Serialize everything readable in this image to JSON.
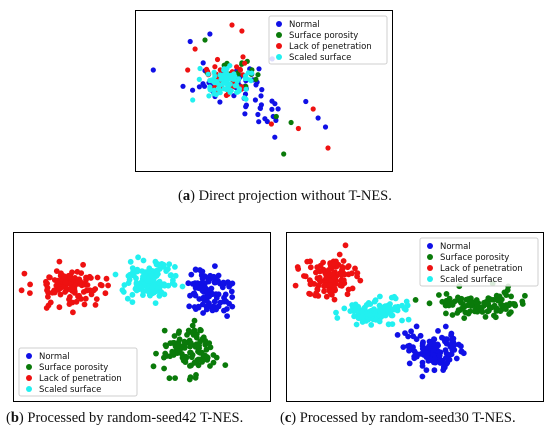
{
  "captions": {
    "a": {
      "tag": "a",
      "text": " Direct projection without T-NES."
    },
    "b": {
      "tag": "b",
      "text": " Processed by random-seed42 T-NES."
    },
    "c": {
      "tag": "c",
      "text": " Processed by random-seed30 T-NES."
    }
  },
  "colors": {
    "Normal": "#1010e6",
    "Surface porosity": "#0a7a0a",
    "Lack of penetration": "#ee1111",
    "Scaled surface": "#22f0f0"
  },
  "chart_data": [
    {
      "type": "scatter",
      "panel": "a",
      "title": "",
      "xlabel": "",
      "ylabel": "",
      "xlim": [
        0,
        100
      ],
      "ylim": [
        0,
        100
      ],
      "grid": false,
      "legend_position": "top-right",
      "series": [
        {
          "name": "Normal",
          "clusters": [
            {
              "cx": 36,
              "cy": 58,
              "sx": 10,
              "sy": 9,
              "n": 45,
              "seed": 11
            },
            {
              "cx": 50,
              "cy": 40,
              "sx": 9,
              "sy": 9,
              "n": 25,
              "seed": 12
            }
          ],
          "points": [
            [
              5,
              64
            ],
            [
              20,
              83
            ],
            [
              67,
              43
            ],
            [
              72,
              32
            ],
            [
              75,
              26
            ],
            [
              28,
              88
            ]
          ]
        },
        {
          "name": "Surface porosity",
          "clusters": [
            {
              "cx": 38,
              "cy": 62,
              "sx": 9,
              "sy": 7,
              "n": 18,
              "seed": 21
            }
          ],
          "points": [
            [
              58,
              8
            ],
            [
              61,
              29
            ],
            [
              55,
              33
            ],
            [
              26,
              84
            ]
          ]
        },
        {
          "name": "Lack of penetration",
          "clusters": [
            {
              "cx": 33,
              "cy": 58,
              "sx": 7,
              "sy": 8,
              "n": 45,
              "seed": 31
            }
          ],
          "points": [
            [
              37,
              94
            ],
            [
              41,
              90
            ],
            [
              64,
              25
            ],
            [
              76,
              12
            ],
            [
              70,
              38
            ],
            [
              53,
              28
            ],
            [
              22,
              78
            ],
            [
              19,
              64
            ]
          ]
        },
        {
          "name": "Scaled surface",
          "clusters": [
            {
              "cx": 36,
              "cy": 56,
              "sx": 7,
              "sy": 6,
              "n": 80,
              "seed": 41
            }
          ],
          "points": [
            [
              21,
              44
            ],
            [
              24,
              65
            ]
          ]
        }
      ],
      "legend": [
        "Normal",
        "Surface porosity",
        "Lack of penetration",
        "Scaled surface"
      ]
    },
    {
      "type": "scatter",
      "panel": "b",
      "title": "",
      "xlabel": "",
      "ylabel": "",
      "xlim": [
        0,
        100
      ],
      "ylim": [
        0,
        100
      ],
      "grid": false,
      "legend_position": "bottom-left",
      "series": [
        {
          "name": "Normal",
          "clusters": [
            {
              "cx": 77,
              "cy": 66,
              "sx": 6.5,
              "sy": 10,
              "n": 110,
              "seed": 51
            }
          ],
          "points": []
        },
        {
          "name": "Surface porosity",
          "clusters": [
            {
              "cx": 69,
              "cy": 28,
              "sx": 7,
              "sy": 11,
              "n": 110,
              "seed": 52
            }
          ],
          "points": []
        },
        {
          "name": "Lack of penetration",
          "clusters": [
            {
              "cx": 21,
              "cy": 70,
              "sx": 10,
              "sy": 8,
              "n": 120,
              "seed": 53
            }
          ],
          "points": []
        },
        {
          "name": "Scaled surface",
          "clusters": [
            {
              "cx": 53,
              "cy": 74,
              "sx": 6.5,
              "sy": 9,
              "n": 130,
              "seed": 54
            }
          ],
          "points": []
        }
      ],
      "legend": [
        "Normal",
        "Surface porosity",
        "Lack of penetration",
        "Scaled surface"
      ]
    },
    {
      "type": "scatter",
      "panel": "c",
      "title": "",
      "xlabel": "",
      "ylabel": "",
      "xlim": [
        0,
        100
      ],
      "ylim": [
        0,
        100
      ],
      "grid": false,
      "legend_position": "top-right",
      "series": [
        {
          "name": "Normal",
          "clusters": [
            {
              "cx": 57,
              "cy": 30,
              "sx": 8.5,
              "sy": 10,
              "n": 115,
              "seed": 61
            }
          ],
          "points": []
        },
        {
          "name": "Surface porosity",
          "clusters": [
            {
              "cx": 76,
              "cy": 58,
              "sx": 11,
              "sy": 5,
              "n": 110,
              "seed": 62
            }
          ],
          "points": []
        },
        {
          "name": "Lack of penetration",
          "clusters": [
            {
              "cx": 15,
              "cy": 75,
              "sx": 6.5,
              "sy": 9,
              "n": 115,
              "seed": 63
            }
          ],
          "points": []
        },
        {
          "name": "Scaled surface",
          "clusters": [
            {
              "cx": 34,
              "cy": 53,
              "sx": 8.5,
              "sy": 5,
              "n": 115,
              "seed": 64
            }
          ],
          "points": []
        }
      ],
      "legend": [
        "Normal",
        "Surface porosity",
        "Lack of penetration",
        "Scaled surface"
      ]
    }
  ]
}
